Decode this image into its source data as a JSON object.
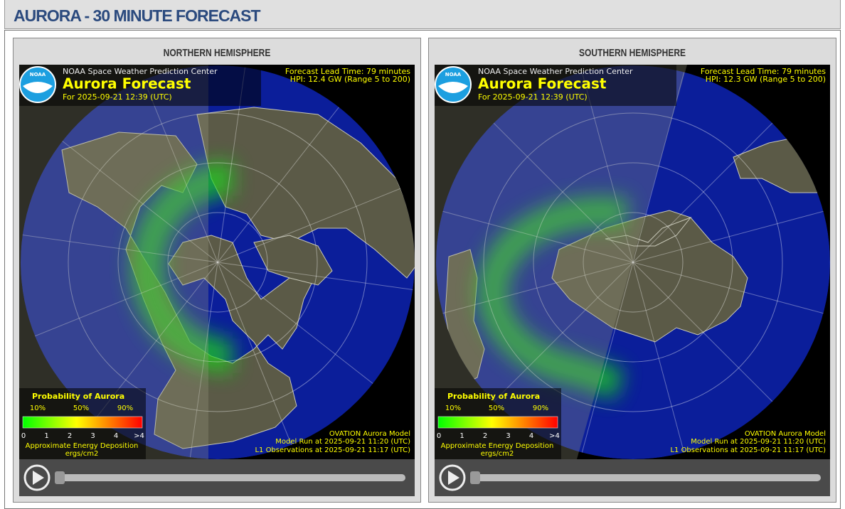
{
  "header": {
    "title": "AURORA - 30 MINUTE FORECAST"
  },
  "panels": [
    {
      "heading": "NORTHERN HEMISPHERE",
      "logo": "NOAA",
      "center": "NOAA Space Weather Prediction Center",
      "title": "Aurora Forecast",
      "time": "For 2025-09-21 12:39 (UTC)",
      "lead_time": "Forecast Lead Time:  79 minutes",
      "hpi": "HPI:  12.4 GW (Range 5 to 200)",
      "legend": {
        "title": "Probability of Aurora",
        "percent_labels": [
          "10%",
          "50%",
          "90%"
        ],
        "energy_labels": [
          "0",
          "1",
          "2",
          "3",
          "4",
          ">4"
        ],
        "caption": "Approximate Energy Deposition",
        "units": "ergs/cm2"
      },
      "model": "OVATION Aurora Model",
      "model_run": "Model Run at 2025-09-21 11:20 (UTC)",
      "observations": "L1 Observations at 2025-09-21 11:17 (UTC)"
    },
    {
      "heading": "SOUTHERN HEMISPHERE",
      "logo": "NOAA",
      "center": "NOAA Space Weather Prediction Center",
      "title": "Aurora Forecast",
      "time": "For 2025-09-21 12:39 (UTC)",
      "lead_time": "Forecast Lead Time:  79 minutes",
      "hpi": "HPI:  12.3 GW (Range 5 to 200)",
      "legend": {
        "title": "Probability of Aurora",
        "percent_labels": [
          "10%",
          "50%",
          "90%"
        ],
        "energy_labels": [
          "0",
          "1",
          "2",
          "3",
          "4",
          ">4"
        ],
        "caption": "Approximate Energy Deposition",
        "units": "ergs/cm2"
      },
      "model": "OVATION Aurora Model",
      "model_run": "Model Run at 2025-09-21 11:20 (UTC)",
      "observations": "L1 Observations at 2025-09-21 11:17 (UTC)"
    }
  ]
}
